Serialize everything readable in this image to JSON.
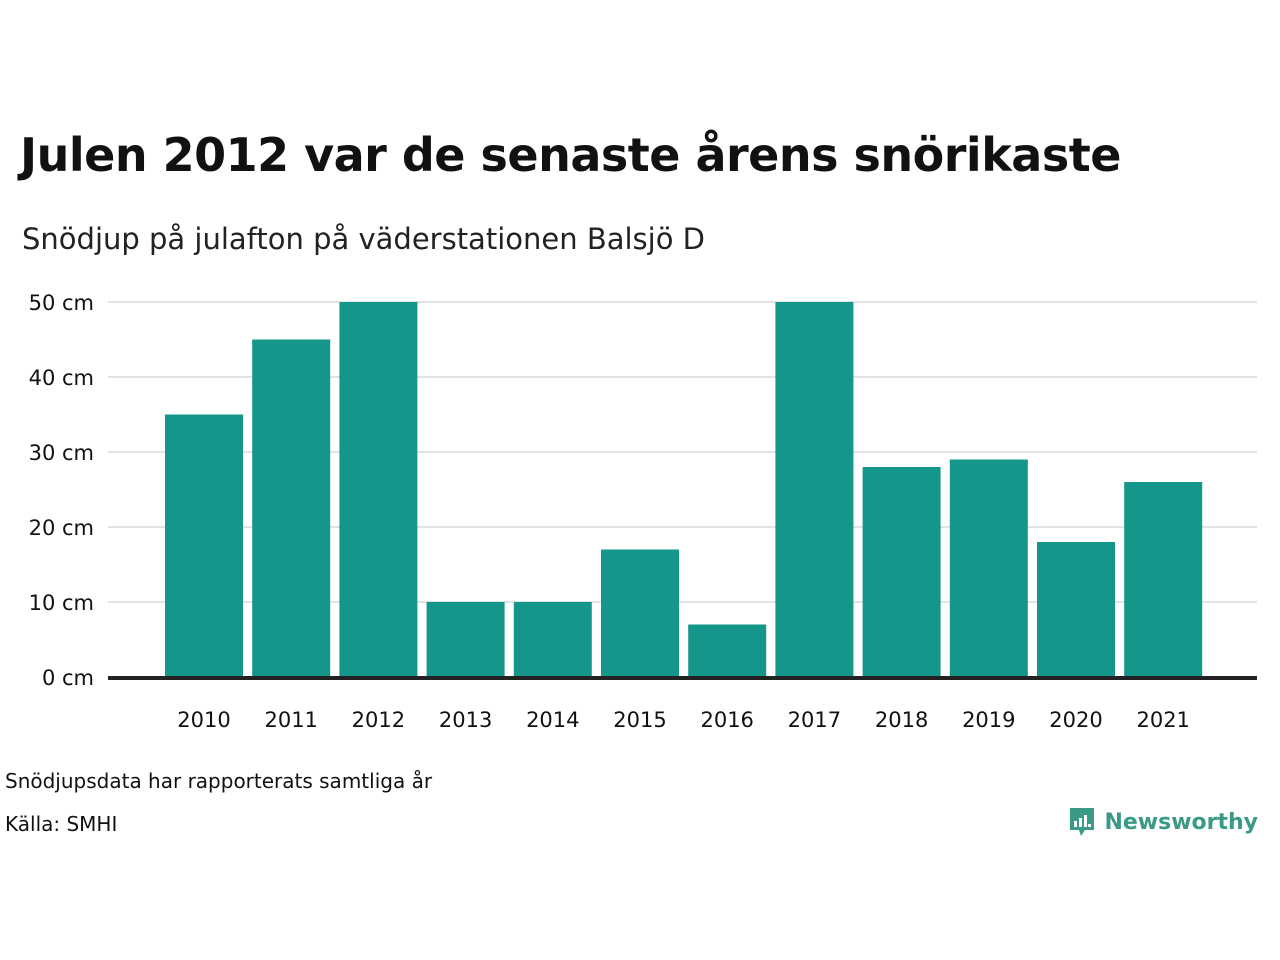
{
  "title": "Julen 2012 var de senaste årens snörikaste",
  "subtitle": "Snödjup på julafton på väderstationen Balsjö D",
  "note": "Snödjupsdata har rapporterats samtliga år",
  "source": "Källa: SMHI",
  "brand": {
    "name": "Newsworthy",
    "icon": "newsworthy-logo-icon",
    "color": "#3a9a86"
  },
  "colors": {
    "bar": "#14968a",
    "grid": "#e3e3e3",
    "axis": "#222222"
  },
  "chart_data": {
    "type": "bar",
    "categories": [
      "2010",
      "2011",
      "2012",
      "2013",
      "2014",
      "2015",
      "2016",
      "2017",
      "2018",
      "2019",
      "2020",
      "2021"
    ],
    "values": [
      35,
      45,
      50,
      10,
      10,
      17,
      7,
      50,
      28,
      29,
      18,
      26
    ],
    "title": "Julen 2012 var de senaste årens snörikaste",
    "subtitle": "Snödjup på julafton på väderstationen Balsjö D",
    "xlabel": "",
    "ylabel": "",
    "ylim": [
      0,
      50
    ],
    "yticks": [
      0,
      10,
      20,
      30,
      40,
      50
    ],
    "ytick_labels": [
      "0 cm",
      "10 cm",
      "20 cm",
      "30 cm",
      "40 cm",
      "50 cm"
    ],
    "grid": true,
    "legend": "none"
  }
}
